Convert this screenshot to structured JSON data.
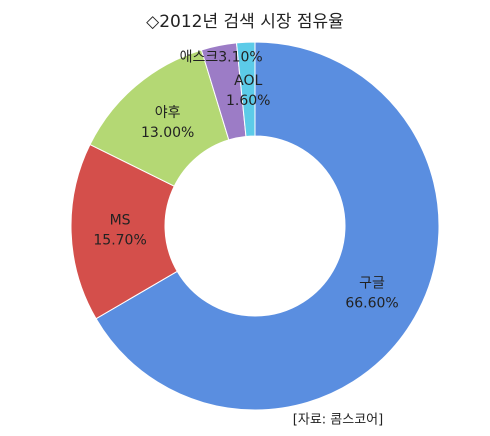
{
  "chart_data": {
    "type": "donut",
    "title": "◇2012년 검색 시장 점유율",
    "categories": [
      "구글",
      "MS",
      "야후",
      "애스크",
      "AOL"
    ],
    "values": [
      66.6,
      15.7,
      13.0,
      3.1,
      1.6
    ],
    "value_labels": [
      "66.60%",
      "15.70%",
      "13.00%",
      "3.10%",
      "1.60%"
    ],
    "colors": [
      "#5a8ee0",
      "#d44f4b",
      "#b4d874",
      "#9c7cc6",
      "#5ccbe8"
    ],
    "source": "[자료: 콤스코어]"
  }
}
